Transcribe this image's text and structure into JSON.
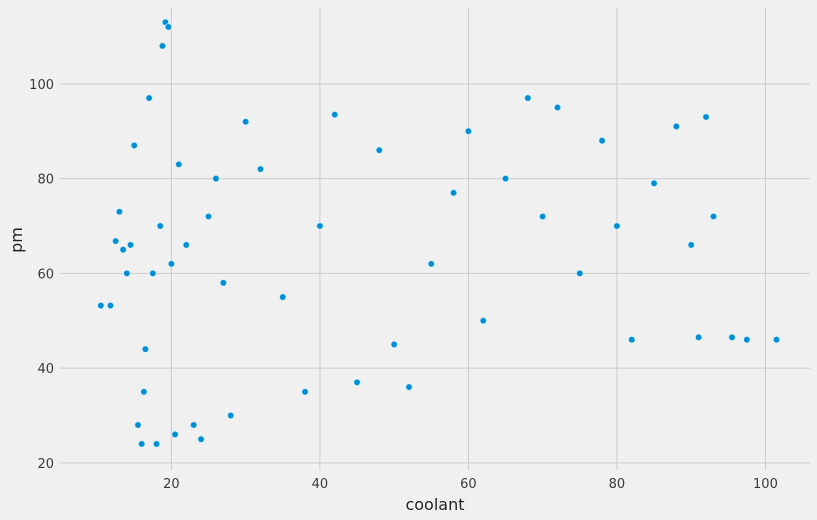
{
  "chart_data": {
    "type": "scatter",
    "title": "",
    "xlabel": "coolant",
    "ylabel": "pm",
    "xlim": [
      5,
      106
    ],
    "ylim": [
      18.5,
      116
    ],
    "xticks": [
      20,
      40,
      60,
      80,
      100
    ],
    "yticks": [
      20,
      40,
      60,
      80,
      100
    ],
    "grid": true,
    "point_color": "#008fd5",
    "point_edge_color": "#cdeaf9",
    "background_color": "#f0f0f0",
    "grid_color": "#cbcbcb",
    "series": [
      {
        "x": [
          10.5,
          11.8,
          12.5,
          13.0,
          13.5,
          14.0,
          14.5,
          15.0,
          15.5,
          16.0,
          16.3,
          16.5,
          17.0,
          17.5,
          18.0,
          18.5,
          18.8,
          19.2,
          19.6,
          20.0,
          20.5,
          21.0,
          22.0,
          23.0,
          24.0,
          25.0,
          26.0,
          27.0,
          28.0,
          30.0,
          32.0,
          35.0,
          38.0,
          40.0,
          42.0,
          45.0,
          48.0,
          50.0,
          52.0,
          55.0,
          58.0,
          60.0,
          62.0,
          65.0,
          68.0,
          70.0,
          72.0,
          75.0,
          78.0,
          80.0,
          82.0,
          85.0,
          88.0,
          90.0,
          91.0,
          92.0,
          93.0,
          95.5,
          97.5,
          101.5
        ],
        "y": [
          53.2,
          53.2,
          66.8,
          73.0,
          65.0,
          60.0,
          66.0,
          87.0,
          28.0,
          24.0,
          35.0,
          44.0,
          97.0,
          60.0,
          24.0,
          70.0,
          108.0,
          113.0,
          112.0,
          62.0,
          26.0,
          83.0,
          66.0,
          28.0,
          25.0,
          72.0,
          80.0,
          58.0,
          30.0,
          92.0,
          82.0,
          55.0,
          35.0,
          70.0,
          93.5,
          37.0,
          86.0,
          45.0,
          36.0,
          62.0,
          77.0,
          90.0,
          50.0,
          80.0,
          97.0,
          72.0,
          95.0,
          60.0,
          88.0,
          70.0,
          46.0,
          79.0,
          91.0,
          66.0,
          46.5,
          93.0,
          72.0,
          46.5,
          46.0,
          46.0
        ]
      }
    ]
  }
}
